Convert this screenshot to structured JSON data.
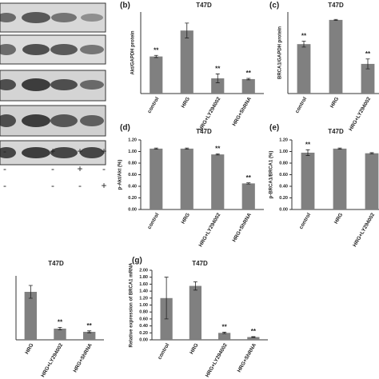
{
  "blot": {
    "rows": [
      [
        "-",
        "+",
        "+",
        "+"
      ],
      [
        "-",
        "-",
        "+",
        "-"
      ],
      [
        "-",
        "-",
        "-",
        "+"
      ]
    ]
  },
  "chart_data": [
    {
      "type": "bar",
      "panel": "(b)",
      "title": "T47D",
      "ylabel": "Akt/GAPDH protein",
      "color": "#808080",
      "categories": [
        "control",
        "HRG",
        "HRG+LY294002",
        "HRG+ShRNA"
      ],
      "values": [
        1.0,
        1.7,
        0.41,
        0.39
      ],
      "errors": [
        0.03,
        0.2,
        0.12,
        0.02
      ],
      "annotations": [
        "**",
        null,
        "**",
        "**"
      ],
      "ylim": [
        0,
        2.2
      ]
    },
    {
      "type": "bar",
      "panel": "(c)",
      "title": "T47D",
      "ylabel": "BRCA1/GAPDH protein",
      "color": "#808080",
      "categories": [
        "control",
        "HRG",
        "HRG+LY294002"
      ],
      "values": [
        1.0,
        1.49,
        0.6
      ],
      "errors": [
        0.06,
        0.01,
        0.1
      ],
      "annotations": [
        "**",
        null,
        "**"
      ],
      "ylim": [
        0,
        1.65
      ]
    },
    {
      "type": "bar",
      "panel": "(d)",
      "title": "T47D",
      "ylabel": "p-Akt/Akt (%)",
      "color": "#808080",
      "categories": [
        "control",
        "HRG",
        "HRG+LY294002",
        "HRG+ShRNA"
      ],
      "values": [
        1.05,
        1.05,
        0.95,
        0.45
      ],
      "errors": [
        0.01,
        0.01,
        0.01,
        0.01
      ],
      "annotations": [
        null,
        null,
        "**",
        "**"
      ],
      "ylim": [
        0,
        1.2
      ],
      "yticks": [
        {
          "value": 0,
          "label": "0.00"
        },
        {
          "value": 0.2,
          "label": "0.20"
        },
        {
          "value": 0.4,
          "label": "0.40"
        },
        {
          "value": 0.6,
          "label": "0.60"
        },
        {
          "value": 0.8,
          "label": "0.80"
        },
        {
          "value": 1.0,
          "label": "1.00"
        },
        {
          "value": 1.2,
          "label": "1.20"
        }
      ]
    },
    {
      "type": "bar",
      "panel": "(e)",
      "title": "T47D",
      "ylabel": "p-BRCA1/BRCA1 (%)",
      "color": "#808080",
      "categories": [
        "control",
        "HRG",
        "HRG+LY294002"
      ],
      "values": [
        0.98,
        1.05,
        0.97
      ],
      "errors": [
        0.05,
        0.01,
        0.01
      ],
      "annotations": [
        "**",
        null,
        null
      ],
      "ylim": [
        0,
        1.2
      ],
      "yticks": [
        {
          "value": 0,
          "label": "0.00"
        },
        {
          "value": 0.2,
          "label": "0.20"
        },
        {
          "value": 0.4,
          "label": "0.40"
        },
        {
          "value": 0.6,
          "label": "0.60"
        },
        {
          "value": 0.8,
          "label": "0.80"
        },
        {
          "value": 1.0,
          "label": "1.00"
        },
        {
          "value": 1.2,
          "label": "1.20"
        }
      ]
    },
    {
      "type": "bar",
      "title": "T47D",
      "color": "#808080",
      "categories": [
        "HRG",
        "HRG+LY294002",
        "HRG+ShRNA"
      ],
      "values": [
        1.5,
        0.35,
        0.25
      ],
      "errors": [
        0.2,
        0.04,
        0.03
      ],
      "annotations": [
        null,
        "**",
        "**"
      ],
      "ylim": [
        0,
        2.0
      ]
    },
    {
      "type": "bar",
      "panel": "(g)",
      "title": "T47D",
      "ylabel": "Relative expression of BRCA1 mRNA",
      "color": "#808080",
      "categories": [
        "control",
        "HRG",
        "HRG+LY294002",
        "HRG+ShRNA"
      ],
      "values": [
        1.2,
        1.55,
        0.2,
        0.08
      ],
      "errors": [
        0.6,
        0.12,
        0.02,
        0.01
      ],
      "annotations": [
        null,
        null,
        "**",
        "**"
      ],
      "ylim": [
        0,
        2.0
      ],
      "yticks": [
        {
          "value": 0,
          "label": "0.00"
        },
        {
          "value": 0.2,
          "label": "0.20"
        },
        {
          "value": 0.4,
          "label": "0.40"
        },
        {
          "value": 0.6,
          "label": "0.60"
        },
        {
          "value": 0.8,
          "label": "0.80"
        },
        {
          "value": 1.0,
          "label": "1.00"
        },
        {
          "value": 1.2,
          "label": "1.20"
        },
        {
          "value": 1.4,
          "label": "1.40"
        },
        {
          "value": 1.6,
          "label": "1.60"
        },
        {
          "value": 1.8,
          "label": "1.80"
        },
        {
          "value": 2.0,
          "label": "2.00"
        }
      ]
    }
  ]
}
